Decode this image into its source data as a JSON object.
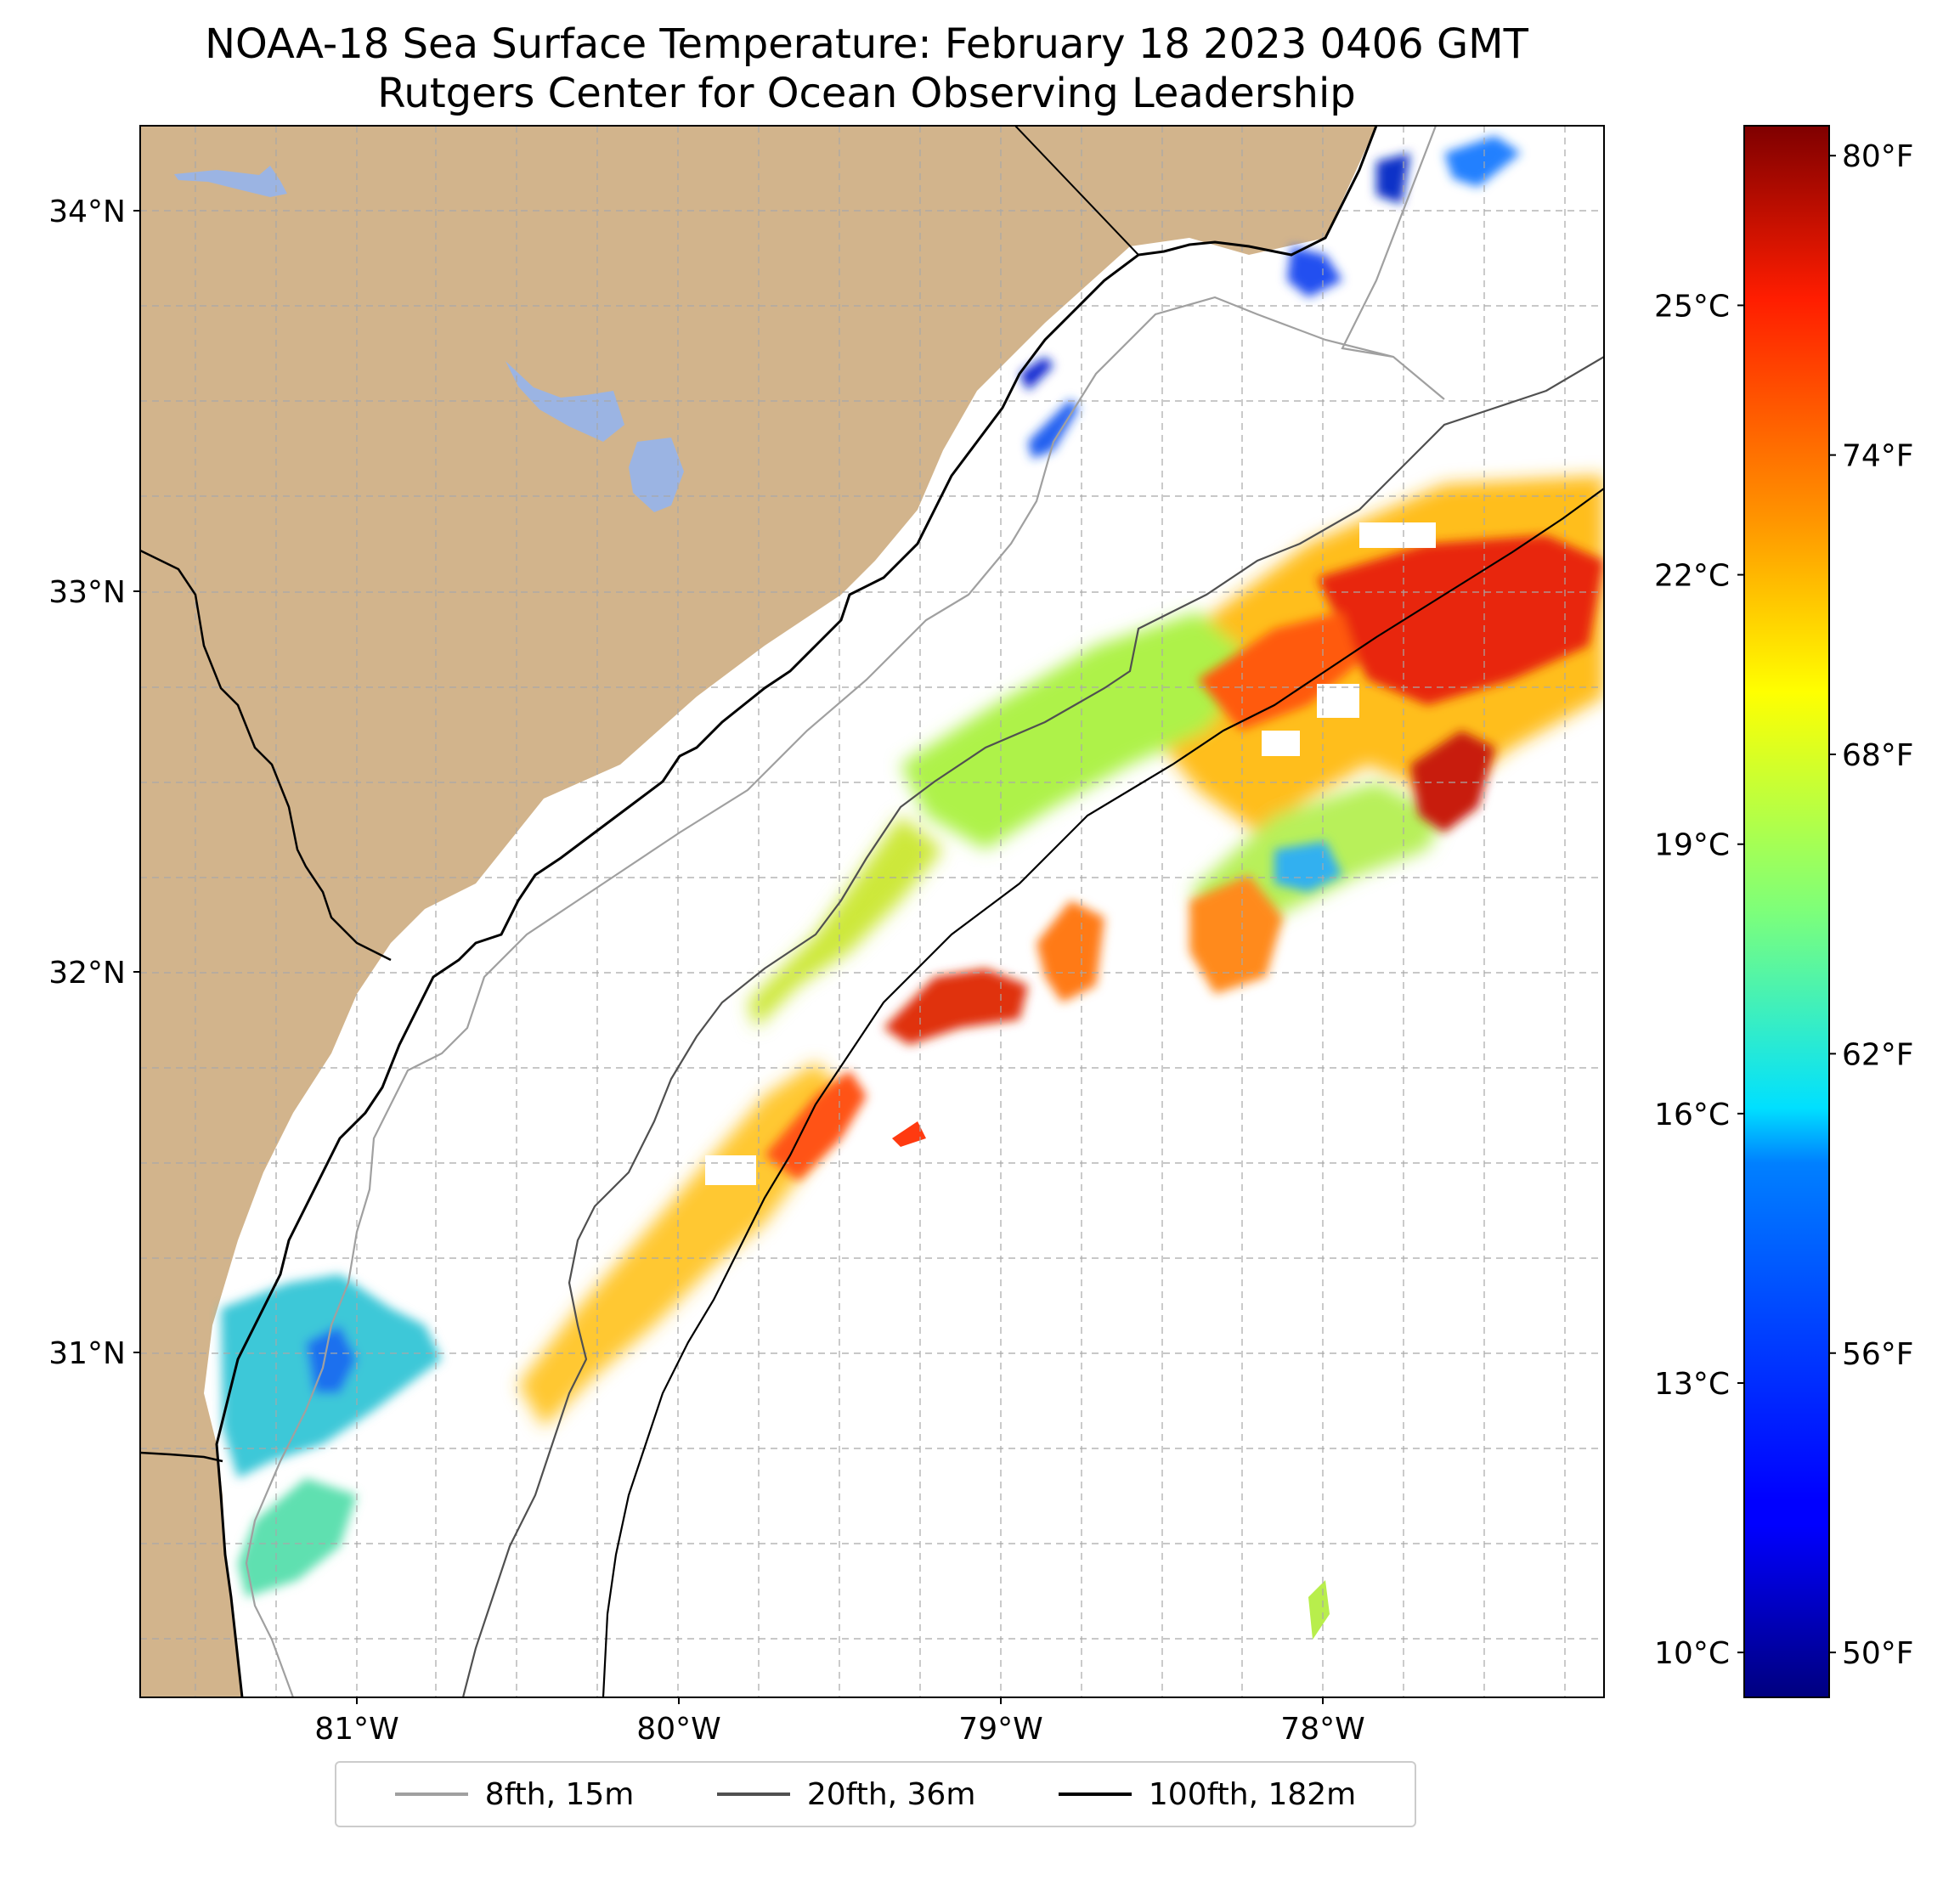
{
  "title": {
    "line1": "NOAA-18 Sea Surface Temperature: February 18 2023 0406 GMT",
    "line2": "Rutgers Center for Ocean Observing Leadership"
  },
  "map": {
    "lat_range": [
      30.2,
      34.2
    ],
    "lon_range": [
      -81.7,
      -77.2
    ],
    "lat_ticks": [
      {
        "lat": 34,
        "label": "34°N"
      },
      {
        "lat": 33,
        "label": "33°N"
      },
      {
        "lat": 32,
        "label": "32°N"
      },
      {
        "lat": 31,
        "label": "31°N"
      }
    ],
    "lon_ticks": [
      {
        "lon": -81,
        "label": "81°W"
      },
      {
        "lon": -80,
        "label": "80°W"
      },
      {
        "lon": -79,
        "label": "79°W"
      },
      {
        "lon": -78,
        "label": "78°W"
      }
    ],
    "gridlines": "dashed gray",
    "colors": {
      "land": "#d2b48c",
      "lakes": "#9bb4e3",
      "ocean": "#ffffff",
      "coastline": "#000000",
      "isobath_8fth": "#a0a0a0",
      "isobath_20fth": "#505050",
      "isobath_100fth": "#000000"
    }
  },
  "colorbar": {
    "colormap": "jet",
    "range_c": [
      9.5,
      27.0
    ],
    "celsius_ticks": [
      {
        "value": 10,
        "label": "10°C"
      },
      {
        "value": 13,
        "label": "13°C"
      },
      {
        "value": 16,
        "label": "16°C"
      },
      {
        "value": 19,
        "label": "19°C"
      },
      {
        "value": 22,
        "label": "22°C"
      },
      {
        "value": 25,
        "label": "25°C"
      }
    ],
    "fahrenheit_ticks": [
      {
        "value": 50,
        "label": "50°F"
      },
      {
        "value": 56,
        "label": "56°F"
      },
      {
        "value": 62,
        "label": "62°F"
      },
      {
        "value": 68,
        "label": "68°F"
      },
      {
        "value": 74,
        "label": "74°F"
      },
      {
        "value": 80,
        "label": "80°F"
      }
    ]
  },
  "legend": {
    "entries": [
      {
        "label": "8fth, 15m",
        "color": "#a0a0a0"
      },
      {
        "label": "20fth, 36m",
        "color": "#505050"
      },
      {
        "label": "100fth, 182m",
        "color": "#000000"
      }
    ]
  }
}
